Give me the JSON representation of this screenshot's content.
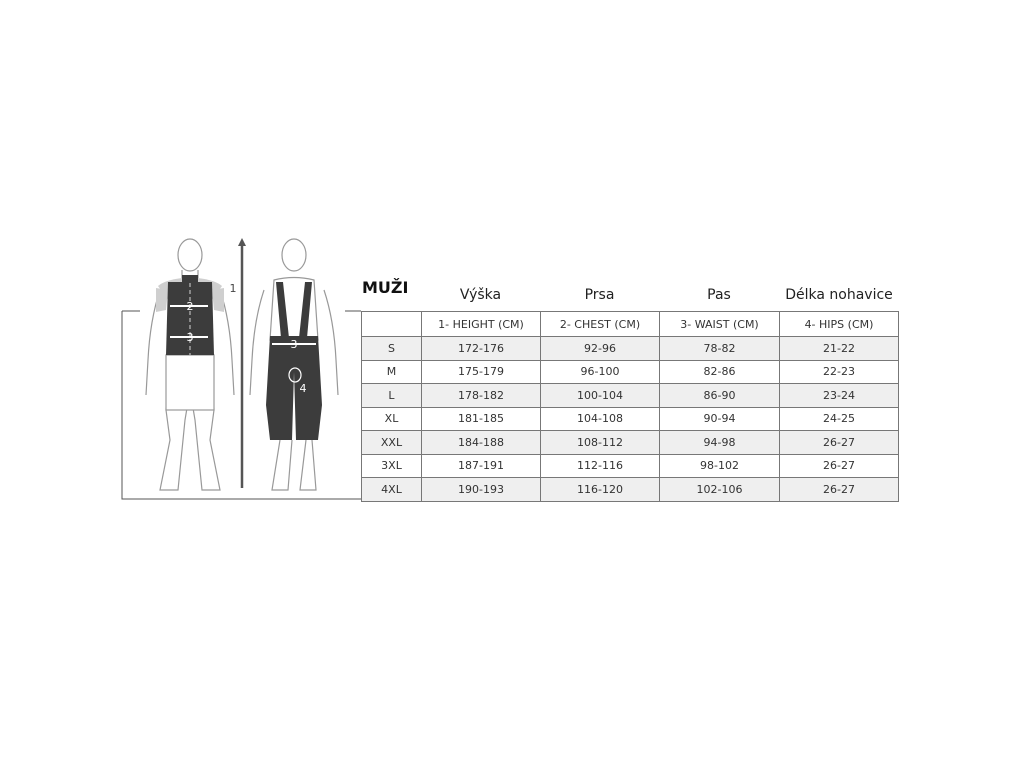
{
  "title": "MUŽI",
  "column_titles": [
    "Výška",
    "Prsa",
    "Pas",
    "Délka nohavice"
  ],
  "headers": [
    "",
    "1- HEIGHT (CM)",
    "2- CHEST (CM)",
    "3- WAIST (CM)",
    "4- HIPS (CM)"
  ],
  "rows": [
    [
      "S",
      "172-176",
      "92-96",
      "78-82",
      "21-22"
    ],
    [
      "M",
      "175-179",
      "96-100",
      "82-86",
      "22-23"
    ],
    [
      "L",
      "178-182",
      "100-104",
      "86-90",
      "23-24"
    ],
    [
      "XL",
      "181-185",
      "104-108",
      "90-94",
      "24-25"
    ],
    [
      "XXL",
      "184-188",
      "108-112",
      "94-98",
      "26-27"
    ],
    [
      "3XL",
      "187-191",
      "112-116",
      "98-102",
      "26-27"
    ],
    [
      "4XL",
      "190-193",
      "116-120",
      "102-106",
      "26-27"
    ]
  ],
  "figure_labels": {
    "height": "1",
    "chest": "2",
    "waist": "3",
    "waist_back": "3",
    "hips": "4"
  },
  "colors": {
    "garment": "#3c3c3c",
    "sleeve": "#cfcfcf",
    "shade_row": "#efefef"
  }
}
